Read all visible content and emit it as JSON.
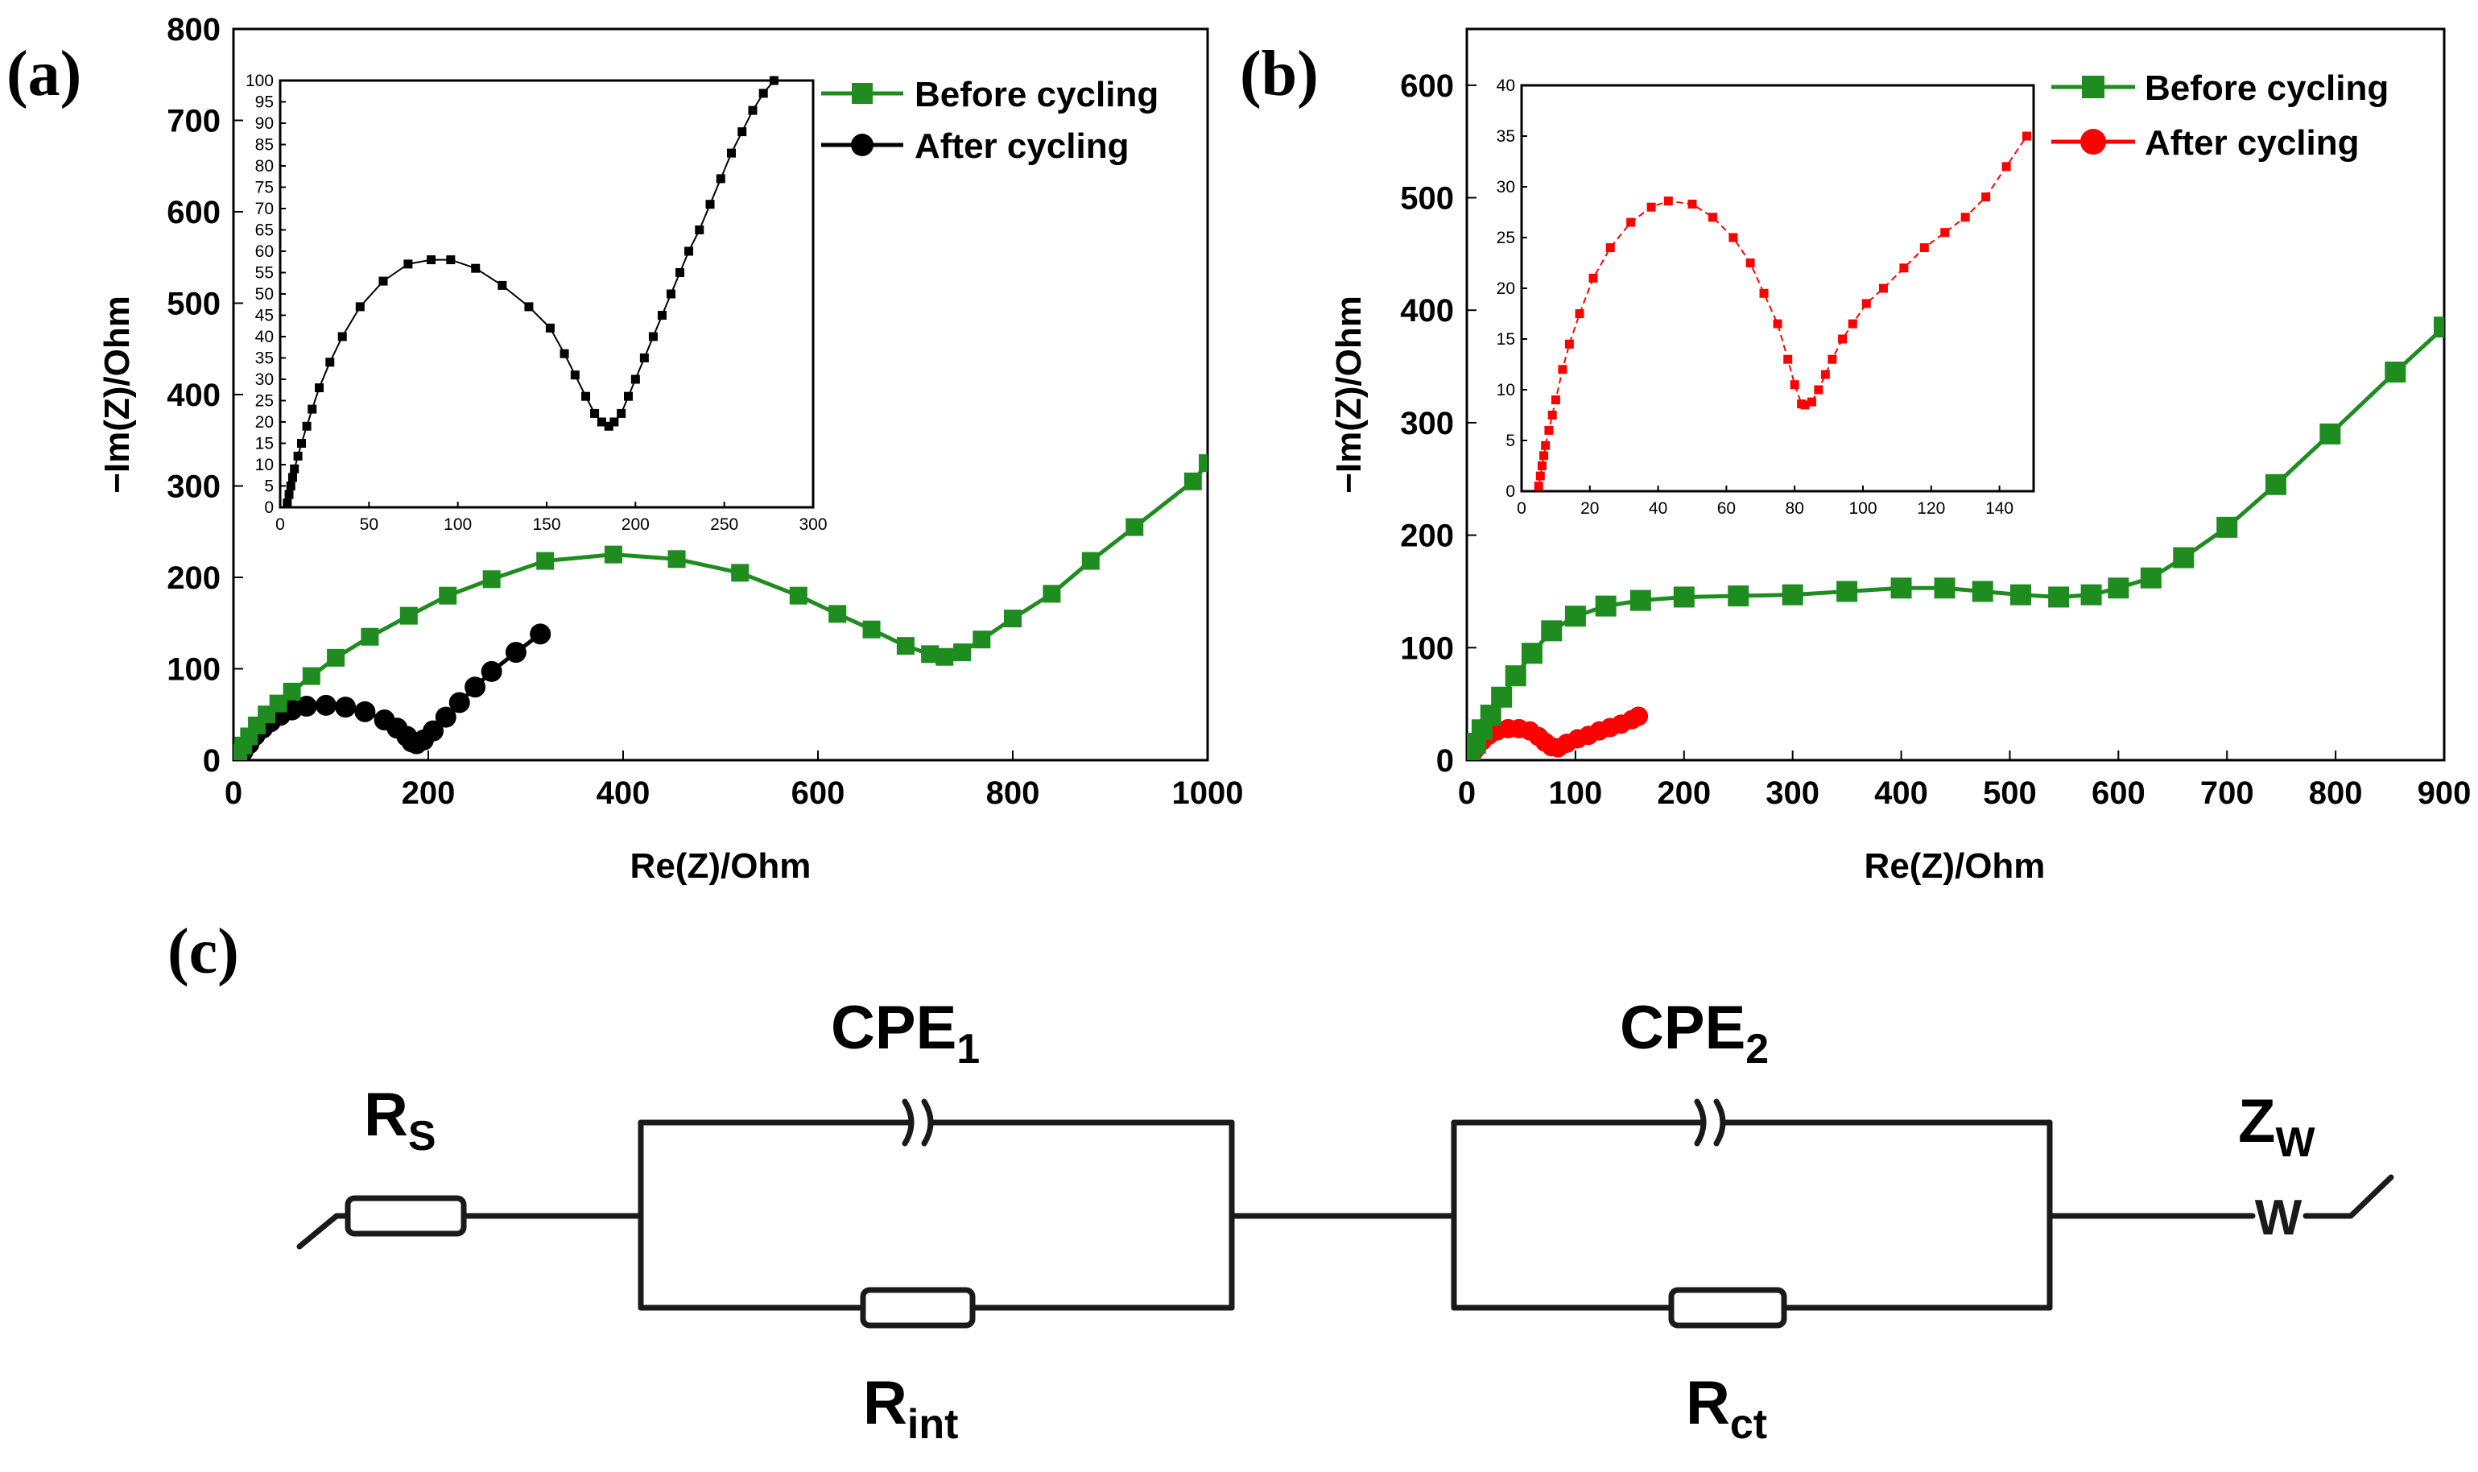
{
  "panels": {
    "a": "(a)",
    "b": "(b)",
    "c": "(c)"
  },
  "colors": {
    "before": "#1f8c1f",
    "after_a": "#000000",
    "after_b": "#ff0000"
  },
  "chart_data": [
    {
      "id": "a",
      "type": "scatter",
      "xlabel": "Re(Z)/Ohm",
      "ylabel": "−Im(Z)/Ohm",
      "xlim": [
        0,
        1000
      ],
      "ylim": [
        0,
        800
      ],
      "xticks": [
        0,
        200,
        400,
        600,
        800,
        1000
      ],
      "yticks": [
        0,
        100,
        200,
        300,
        400,
        500,
        600,
        700,
        800
      ],
      "legend_position": "top-right",
      "series": [
        {
          "name": "Before cycling",
          "marker": "square",
          "color": "#1f8c1f",
          "x": [
            5,
            10,
            16,
            24,
            34,
            46,
            60,
            80,
            105,
            140,
            180,
            220,
            265,
            320,
            390,
            455,
            520,
            580,
            620,
            655,
            690,
            715,
            730,
            748,
            768,
            800,
            840,
            880,
            925,
            985,
            1000
          ],
          "y": [
            8,
            16,
            26,
            38,
            50,
            62,
            75,
            92,
            112,
            135,
            158,
            180,
            198,
            218,
            225,
            220,
            205,
            180,
            160,
            143,
            125,
            116,
            113,
            118,
            132,
            155,
            182,
            218,
            255,
            305,
            325
          ]
        },
        {
          "name": "After cycling",
          "marker": "circle",
          "color": "#000000",
          "x": [
            5,
            10,
            16,
            22,
            30,
            38,
            48,
            60,
            75,
            95,
            115,
            135,
            155,
            168,
            178,
            183,
            188,
            195,
            205,
            218,
            232,
            248,
            265,
            290,
            315
          ],
          "y": [
            3,
            10,
            18,
            27,
            35,
            42,
            49,
            55,
            59,
            60,
            58,
            53,
            44,
            35,
            26,
            20,
            18,
            22,
            32,
            47,
            63,
            80,
            97,
            118,
            138
          ]
        }
      ],
      "inset": {
        "xlim": [
          0,
          300
        ],
        "ylim": [
          0,
          100
        ],
        "xticks": [
          0,
          50,
          100,
          150,
          200,
          250,
          300
        ],
        "yticks": [
          0,
          5,
          10,
          15,
          20,
          25,
          30,
          35,
          40,
          45,
          50,
          55,
          60,
          65,
          70,
          75,
          80,
          85,
          90,
          95,
          100
        ],
        "series": {
          "name": "After cycling",
          "color": "#000000",
          "x": [
            4,
            5,
            6,
            7,
            8,
            10,
            12,
            15,
            18,
            22,
            28,
            35,
            45,
            58,
            72,
            85,
            96,
            110,
            125,
            140,
            152,
            160,
            166,
            172,
            177,
            181,
            185,
            188,
            192,
            196,
            200,
            205,
            210,
            215,
            220,
            225,
            230,
            236,
            242,
            248,
            254,
            260,
            266,
            272,
            278
          ],
          "y": [
            1,
            3,
            5,
            7,
            9,
            12,
            15,
            19,
            23,
            28,
            34,
            40,
            47,
            53,
            57,
            58,
            58,
            56,
            52,
            47,
            42,
            36,
            31,
            26,
            22,
            20,
            19,
            20,
            22,
            26,
            30,
            35,
            40,
            45,
            50,
            55,
            60,
            65,
            71,
            77,
            83,
            88,
            93,
            97,
            100
          ]
        }
      }
    },
    {
      "id": "b",
      "type": "scatter",
      "xlabel": "Re(Z)/Ohm",
      "ylabel": "−Im(Z)/Ohm",
      "xlim": [
        0,
        900
      ],
      "ylim": [
        0,
        650
      ],
      "xticks": [
        0,
        100,
        200,
        300,
        400,
        500,
        600,
        700,
        800,
        900
      ],
      "yticks": [
        0,
        100,
        200,
        300,
        400,
        500,
        600
      ],
      "legend_position": "top-right",
      "series": [
        {
          "name": "Before cycling",
          "marker": "square",
          "color": "#1f8c1f",
          "x": [
            3,
            8,
            14,
            22,
            32,
            45,
            60,
            78,
            100,
            128,
            160,
            200,
            250,
            300,
            350,
            400,
            440,
            475,
            510,
            545,
            575,
            600,
            630,
            660,
            700,
            745,
            795,
            855,
            900
          ],
          "y": [
            5,
            15,
            27,
            40,
            56,
            75,
            95,
            115,
            128,
            137,
            142,
            145,
            146,
            147,
            150,
            153,
            153,
            150,
            147,
            145,
            147,
            153,
            162,
            180,
            207,
            245,
            290,
            345,
            385
          ]
        },
        {
          "name": "After cycling",
          "marker": "circle",
          "color": "#ff0000",
          "x": [
            4,
            6,
            9,
            14,
            20,
            28,
            38,
            48,
            58,
            66,
            72,
            78,
            84,
            92,
            102,
            112,
            122,
            132,
            142,
            152,
            158
          ],
          "y": [
            3,
            7,
            11,
            17,
            22,
            26,
            28,
            28,
            26,
            21,
            16,
            12,
            11,
            15,
            19,
            22,
            26,
            29,
            32,
            36,
            39
          ]
        }
      ],
      "inset": {
        "xlim": [
          0,
          150
        ],
        "ylim": [
          0,
          40
        ],
        "xticks": [
          0,
          20,
          40,
          60,
          80,
          100,
          120,
          140
        ],
        "yticks": [
          0,
          5,
          10,
          15,
          20,
          25,
          30,
          35,
          40
        ],
        "series": {
          "name": "After cycling",
          "color": "#ff0000",
          "x": [
            5,
            5.5,
            6,
            6.5,
            7,
            8,
            9,
            10,
            12,
            14,
            17,
            21,
            26,
            32,
            38,
            43,
            50,
            56,
            62,
            67,
            71,
            75,
            78,
            80,
            82,
            83,
            85,
            87,
            89,
            91,
            94,
            97,
            101,
            106,
            112,
            118,
            124,
            130,
            136,
            142,
            148
          ],
          "y": [
            0.5,
            1.5,
            2.5,
            3.5,
            4.5,
            6,
            7.5,
            9,
            12,
            14.5,
            17.5,
            21,
            24,
            26.5,
            28,
            28.6,
            28.3,
            27,
            25,
            22.5,
            19.5,
            16.5,
            13,
            10.5,
            8.6,
            8.5,
            8.8,
            10,
            11.5,
            13,
            15,
            16.5,
            18.5,
            20,
            22,
            24,
            25.5,
            27,
            29,
            32,
            35
          ]
        }
      }
    }
  ],
  "circuit": {
    "rs": {
      "main": "R",
      "sub": "S"
    },
    "cpe1": {
      "main": "CPE",
      "sub": "1"
    },
    "rint": {
      "main": "R",
      "sub": "int"
    },
    "cpe2": {
      "main": "CPE",
      "sub": "2"
    },
    "rct": {
      "main": "R",
      "sub": "ct"
    },
    "zw": {
      "main": "Z",
      "sub": "W"
    },
    "warburg_symbol": "W"
  }
}
